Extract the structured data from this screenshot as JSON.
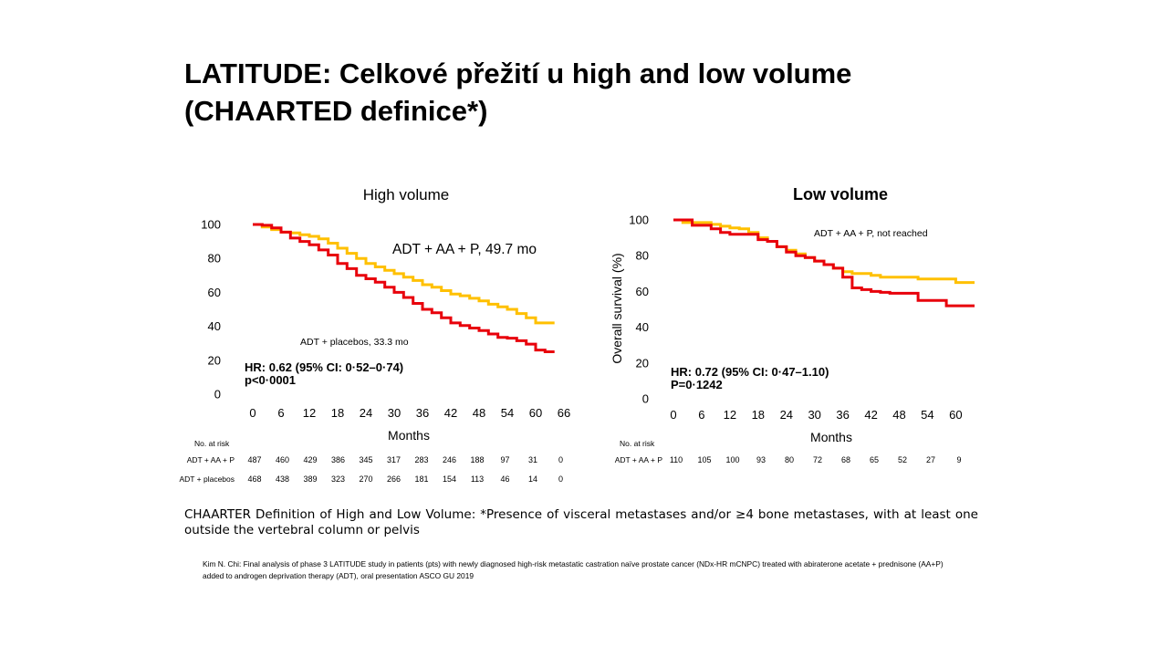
{
  "slide": {
    "title_line1": "LATITUDE: Celkové přežití u high and low volume",
    "title_line2": "(CHAARTED definice*)",
    "definition": "CHAARTER Definition of High and Low Volume: *Presence of visceral metastases and/or ≥4 bone metastases, with at least one outside the vertebral column or pelvis",
    "reference": "Kim N. Chi: Final analysis of phase 3 LATITUDE study in patients (pts) with newly diagnosed high-risk metastatic castration naïve prostate cancer (NDx-HR mCNPC) treated with abiraterone acetate + prednisone (AA+P) added to androgen deprivation therapy (ADT), oral presentation ASCO GU 2019"
  },
  "colors": {
    "adt_aa_p": "#FFC000",
    "adt_placebo": "#E8000B"
  },
  "chart_data": [
    {
      "type": "line",
      "title": "High volume",
      "xlabel": "Months",
      "ylabel": "",
      "xlim": [
        0,
        66
      ],
      "ylim": [
        0,
        100
      ],
      "x_ticks": [
        "0",
        "6",
        "12",
        "18",
        "24",
        "30",
        "36",
        "42",
        "48",
        "54",
        "60",
        "66"
      ],
      "y_ticks": [
        "0",
        "20",
        "40",
        "60",
        "80",
        "100"
      ],
      "series": [
        {
          "name": "ADT + AA + P, 49.7 mo",
          "color": "#FFC000",
          "x": [
            0,
            2,
            4,
            6,
            8,
            10,
            12,
            14,
            16,
            18,
            20,
            22,
            24,
            26,
            28,
            30,
            32,
            34,
            36,
            38,
            40,
            42,
            44,
            46,
            48,
            50,
            52,
            54,
            56,
            58,
            60,
            62,
            64
          ],
          "y": [
            100,
            98.5,
            97,
            95.5,
            95,
            94,
            93,
            91.5,
            89,
            86,
            83,
            80,
            77,
            75,
            73,
            71,
            69,
            67,
            64.5,
            63,
            61,
            59,
            58,
            56.5,
            55,
            53,
            51.5,
            50,
            47.5,
            45,
            42,
            42,
            42
          ]
        },
        {
          "name": "ADT + placebos, 33.3 mo",
          "color": "#E8000B",
          "x": [
            0,
            2,
            4,
            6,
            8,
            10,
            12,
            14,
            16,
            18,
            20,
            22,
            24,
            26,
            28,
            30,
            32,
            34,
            36,
            38,
            40,
            42,
            44,
            46,
            48,
            50,
            52,
            54,
            56,
            58,
            60,
            62,
            64
          ],
          "y": [
            100,
            99.5,
            98,
            95.5,
            92,
            90,
            88,
            85,
            82,
            77,
            74,
            70,
            68,
            66,
            63,
            60,
            57,
            53.5,
            50,
            48,
            45,
            42,
            40.5,
            39,
            37.5,
            35.5,
            33.5,
            33,
            31.5,
            29.5,
            26,
            25,
            25
          ]
        }
      ],
      "annotations": {
        "aa": "ADT + AA + P, 49.7 mo",
        "placebo": "ADT + placebos, 33.3 mo",
        "hr": "HR: 0.62 (95% CI: 0·52–0·74)",
        "p": "p<0·0001"
      },
      "risk_table": {
        "header": "No. at risk",
        "rows": [
          {
            "label": "ADT + AA + P",
            "values": [
              "487",
              "460",
              "429",
              "386",
              "345",
              "317",
              "283",
              "246",
              "188",
              "97",
              "31",
              "0"
            ]
          },
          {
            "label": "ADT + placebos",
            "values": [
              "468",
              "438",
              "389",
              "323",
              "270",
              "266",
              "181",
              "154",
              "113",
              "46",
              "14",
              "0"
            ]
          }
        ]
      }
    },
    {
      "type": "line",
      "title": "Low volume",
      "xlabel": "Months",
      "ylabel": "Overall survival (%)",
      "xlim": [
        0,
        64
      ],
      "ylim": [
        0,
        100
      ],
      "x_ticks": [
        "0",
        "6",
        "12",
        "18",
        "24",
        "30",
        "36",
        "42",
        "48",
        "54",
        "60"
      ],
      "y_ticks": [
        "0",
        "20",
        "40",
        "60",
        "80",
        "100"
      ],
      "series": [
        {
          "name": "ADT + AA + P, not reached",
          "color": "#FFC000",
          "x": [
            0,
            2,
            4,
            6,
            8,
            10,
            12,
            14,
            16,
            18,
            20,
            22,
            24,
            26,
            28,
            30,
            32,
            34,
            36,
            38,
            40,
            42,
            44,
            46,
            48,
            50,
            52,
            54,
            56,
            58,
            60,
            62,
            64
          ],
          "y": [
            100,
            98.5,
            98.5,
            98.5,
            97.5,
            96.5,
            95.5,
            95,
            93,
            90,
            88,
            85,
            83,
            81,
            79,
            77,
            75,
            73,
            71,
            70,
            70,
            69,
            68,
            68,
            68,
            68,
            67,
            67,
            67,
            67,
            65,
            65,
            65
          ]
        },
        {
          "name": "",
          "color": "#E8000B",
          "x": [
            0,
            2,
            4,
            6,
            8,
            10,
            12,
            14,
            16,
            18,
            20,
            22,
            24,
            26,
            28,
            30,
            32,
            34,
            36,
            38,
            40,
            42,
            44,
            46,
            48,
            50,
            52,
            54,
            56,
            58,
            60,
            62,
            64
          ],
          "y": [
            100,
            100,
            97,
            97,
            95,
            93,
            92,
            92,
            92,
            89,
            88,
            85,
            82,
            80,
            79,
            77,
            75,
            73,
            68,
            62,
            61,
            60,
            59.5,
            59,
            59,
            59,
            55,
            55,
            55,
            52,
            52,
            52,
            52
          ]
        }
      ],
      "annotations": {
        "aa": "ADT + AA + P,  not reached",
        "hr": "HR: 0.72 (95% CI: 0·47–1.10)",
        "p": "P=0·1242"
      },
      "risk_table": {
        "header": "No. at risk",
        "rows": [
          {
            "label": "ADT + AA + P",
            "values": [
              "110",
              "105",
              "100",
              "93",
              "80",
              "72",
              "68",
              "65",
              "52",
              "27",
              "9"
            ]
          }
        ]
      }
    }
  ]
}
